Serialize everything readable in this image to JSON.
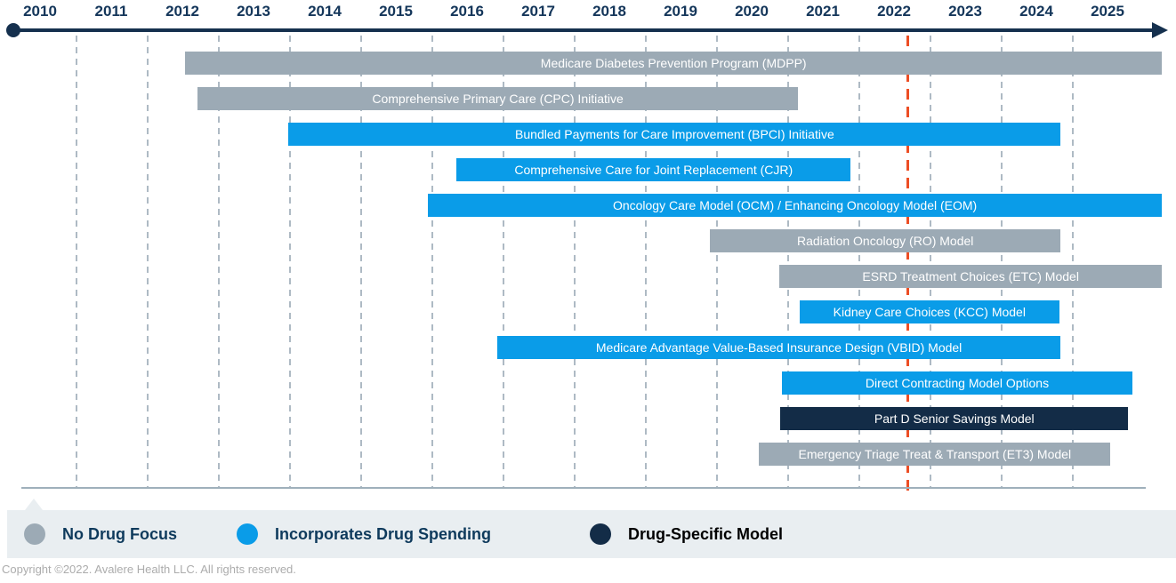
{
  "colors": {
    "no_drug_focus": "#9CAAB5",
    "drug_spending": "#0A9CE8",
    "drug_specific": "#132C47",
    "axis": "#15304E",
    "year_label_text": "#14365A",
    "gridline": "#AEBAC4",
    "reference_line": "#ED4E24",
    "baseline": "#9FB0BB",
    "legend_band": "#E9EEF1",
    "bar_text": "#FFFFFF",
    "legend_text": "#0E3A5C",
    "legend_text_dark": "#000000",
    "copyright_text": "#ACACAC"
  },
  "chart_data": {
    "type": "bar",
    "subtype": "gantt-timeline",
    "title": "",
    "x_axis": {
      "tick_labels": [
        "2010",
        "2011",
        "2012",
        "2013",
        "2014",
        "2015",
        "2016",
        "2017",
        "2018",
        "2019",
        "2020",
        "2021",
        "2022",
        "2023",
        "2024",
        "2025"
      ],
      "range": [
        2010,
        2026.3
      ],
      "arrow_end": true,
      "gridlines": "dashed-vertical"
    },
    "reference_line": {
      "position_year": 2022.68,
      "style": "dashed",
      "color": "#ED4E24"
    },
    "bars": [
      {
        "label": "Medicare Diabetes Prevention Program (MDPP)",
        "start": 2012.53,
        "end": 2026.25,
        "category": "no_drug_focus"
      },
      {
        "label": "Comprehensive Primary Care (CPC) Initiative",
        "start": 2012.7,
        "end": 2021.14,
        "category": "no_drug_focus"
      },
      {
        "label": "Bundled Payments for Care Improvement (BPCI) Initiative",
        "start": 2013.98,
        "end": 2024.83,
        "category": "drug_spending"
      },
      {
        "label": "Comprehensive Care for Joint Replacement (CJR)",
        "start": 2016.34,
        "end": 2021.88,
        "category": "drug_spending"
      },
      {
        "label": "Oncology Care Model (OCM) / Enhancing Oncology Model (EOM)",
        "start": 2015.94,
        "end": 2026.25,
        "category": "drug_spending"
      },
      {
        "label": "Radiation Oncology (RO) Model",
        "start": 2019.9,
        "end": 2024.83,
        "category": "no_drug_focus"
      },
      {
        "label": "ESRD Treatment Choices (ETC) Model",
        "start": 2020.88,
        "end": 2026.25,
        "category": "no_drug_focus"
      },
      {
        "label": "Kidney Care Choices (KCC) Model",
        "start": 2021.16,
        "end": 2024.81,
        "category": "drug_spending"
      },
      {
        "label": "Medicare Advantage Value-Based Insurance Design (VBID) Model",
        "start": 2016.91,
        "end": 2024.83,
        "category": "drug_spending"
      },
      {
        "label": "Direct Contracting Model Options",
        "start": 2020.91,
        "end": 2025.84,
        "category": "drug_spending"
      },
      {
        "label": "Part D Senior Savings Model",
        "start": 2020.89,
        "end": 2025.78,
        "category": "drug_specific"
      },
      {
        "label": "Emergency Triage Treat & Transport (ET3) Model",
        "start": 2020.59,
        "end": 2025.53,
        "category": "no_drug_focus"
      }
    ]
  },
  "legend": {
    "items": [
      {
        "label": "No Drug Focus",
        "category": "no_drug_focus",
        "text_color_key": "legend_text"
      },
      {
        "label": "Incorporates Drug Spending",
        "category": "drug_spending",
        "text_color_key": "legend_text"
      },
      {
        "label": "Drug-Specific Model",
        "category": "drug_specific",
        "text_color_key": "legend_text_dark"
      }
    ]
  },
  "footer": {
    "copyright": "Copyright ©2022. Avalere Health LLC. All rights reserved."
  }
}
